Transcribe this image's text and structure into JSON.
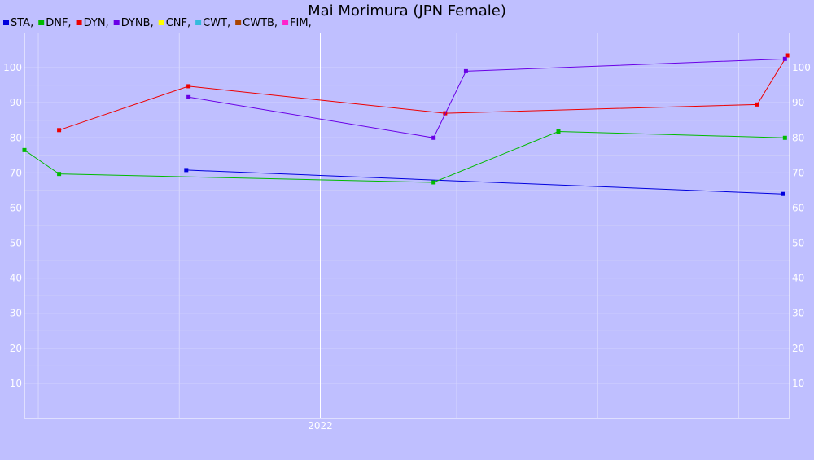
{
  "chart_data": {
    "type": "line",
    "title": "Mai Morimura (JPN Female)",
    "legend_placement": "top-left",
    "legend": [
      "STA,",
      "DNF,",
      "DYN,",
      "DYNB,",
      "CNF,",
      "CWT,",
      "CWTB,",
      "FIM,"
    ],
    "x_tick_labels": [
      "2022"
    ],
    "y_ticks": [
      10,
      20,
      30,
      40,
      50,
      60,
      70,
      80,
      90,
      100
    ],
    "ylim": [
      0,
      110
    ],
    "xlim": [
      "2021-08-26",
      "2022-07-23"
    ],
    "grid": true,
    "series": [
      {
        "name": "STA",
        "color": "#0000dd",
        "points": [
          {
            "x": "2021-11-04",
            "y": 70.8
          },
          {
            "x": "2022-07-20",
            "y": 64
          }
        ]
      },
      {
        "name": "DNF",
        "color": "#00bb00",
        "points": [
          {
            "x": "2021-08-26",
            "y": 76.5
          },
          {
            "x": "2021-09-10",
            "y": 69.7
          },
          {
            "x": "2022-02-19",
            "y": 67.3
          },
          {
            "x": "2022-04-14",
            "y": 81.8
          },
          {
            "x": "2022-07-21",
            "y": 80
          }
        ]
      },
      {
        "name": "DYN",
        "color": "#ee0000",
        "points": [
          {
            "x": "2021-09-10",
            "y": 82.2
          },
          {
            "x": "2021-11-05",
            "y": 94.7
          },
          {
            "x": "2022-02-24",
            "y": 87
          },
          {
            "x": "2022-07-09",
            "y": 89.5
          },
          {
            "x": "2022-07-22",
            "y": 103.5
          }
        ]
      },
      {
        "name": "DYNB",
        "color": "#6a00e6",
        "points": [
          {
            "x": "2021-11-05",
            "y": 91.6
          },
          {
            "x": "2022-02-19",
            "y": 80
          },
          {
            "x": "2022-03-05",
            "y": 99
          },
          {
            "x": "2022-07-21",
            "y": 102.5
          }
        ]
      },
      {
        "name": "CNF",
        "color": "#ffff00",
        "points": []
      },
      {
        "name": "CWT",
        "color": "#33bbdd",
        "points": []
      },
      {
        "name": "CWTB",
        "color": "#aa4400",
        "points": []
      },
      {
        "name": "FIM",
        "color": "#ff22cc",
        "points": []
      }
    ]
  }
}
